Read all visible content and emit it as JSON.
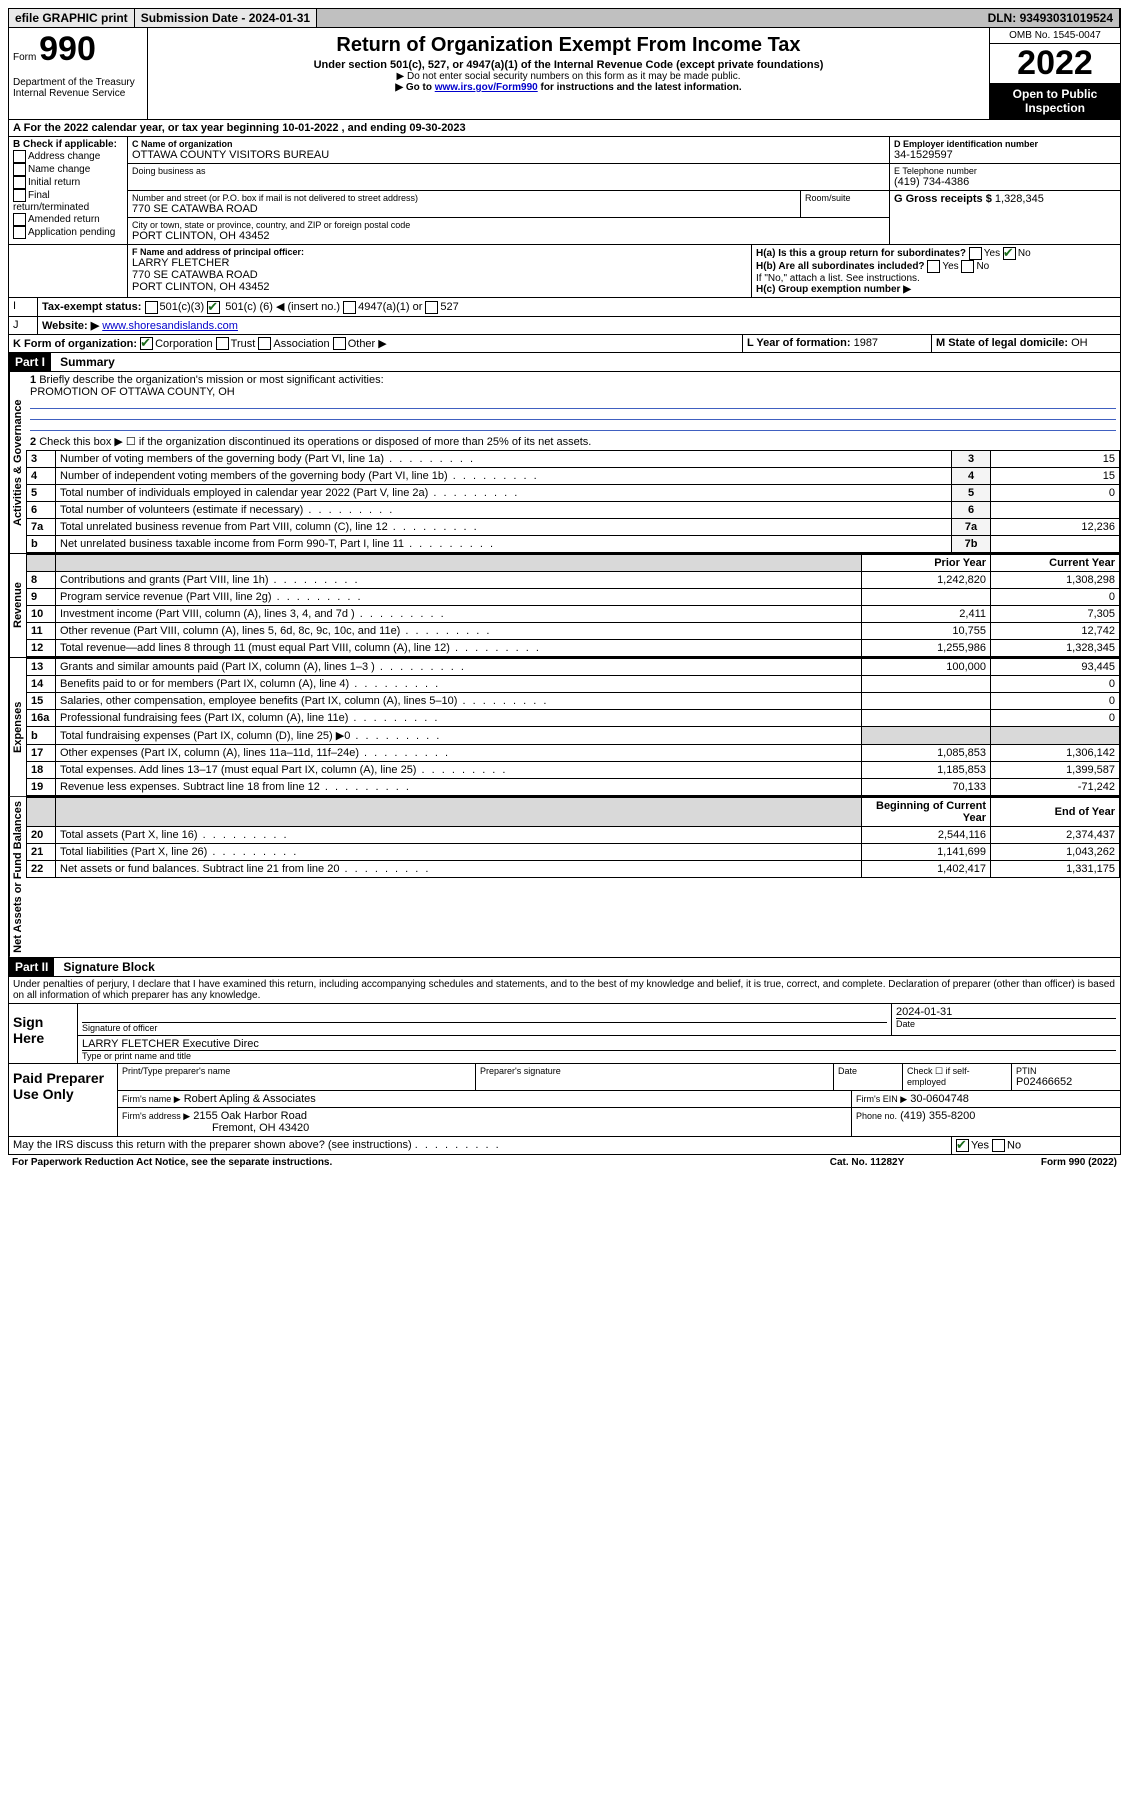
{
  "topbar": {
    "efile": "efile GRAPHIC print",
    "submission_label": "Submission Date - ",
    "submission_date": "2024-01-31",
    "dln_label": "DLN: ",
    "dln": "93493031019524"
  },
  "header": {
    "form": "Form",
    "form_no": "990",
    "dept": "Department of the Treasury\nInternal Revenue Service",
    "title": "Return of Organization Exempt From Income Tax",
    "sub": "Under section 501(c), 527, or 4947(a)(1) of the Internal Revenue Code (except private foundations)",
    "note1": "▶ Do not enter social security numbers on this form as it may be made public.",
    "note2_pre": "▶ Go to ",
    "note2_link": "www.irs.gov/Form990",
    "note2_post": " for instructions and the latest information.",
    "omb": "OMB No. 1545-0047",
    "year": "2022",
    "open": "Open to Public Inspection"
  },
  "A": {
    "text_pre": "For the 2022 calendar year, or tax year beginning ",
    "begin": "10-01-2022",
    "mid": " , and ending ",
    "end": "09-30-2023"
  },
  "B": {
    "label": "B Check if applicable:",
    "addr": "Address change",
    "name": "Name change",
    "init": "Initial return",
    "final": "Final return/terminated",
    "amend": "Amended return",
    "app": "Application pending"
  },
  "C": {
    "name_label": "C Name of organization",
    "name": "OTTAWA COUNTY VISITORS BUREAU",
    "dba_label": "Doing business as",
    "street_label": "Number and street (or P.O. box if mail is not delivered to street address)",
    "room_label": "Room/suite",
    "street": "770 SE CATAWBA ROAD",
    "city_label": "City or town, state or province, country, and ZIP or foreign postal code",
    "city": "PORT CLINTON, OH  43452"
  },
  "D": {
    "label": "D Employer identification number",
    "value": "34-1529597"
  },
  "E": {
    "label": "E Telephone number",
    "value": "(419) 734-4386"
  },
  "G": {
    "label": "G Gross receipts $",
    "value": "1,328,345"
  },
  "F": {
    "label": "F Name and address of principal officer:",
    "name": "LARRY FLETCHER",
    "street": "770 SE CATAWBA ROAD",
    "city": "PORT CLINTON, OH  43452"
  },
  "H": {
    "a": "H(a)  Is this a group return for subordinates?",
    "a_yes": "Yes",
    "a_no": "No",
    "a_checked": "no",
    "b": "H(b)  Are all subordinates included?",
    "b_yes": "Yes",
    "b_no": "No",
    "b_note": "If \"No,\" attach a list. See instructions.",
    "c": "H(c)  Group exemption number ▶"
  },
  "I": {
    "label": "Tax-exempt status:",
    "c3": "501(c)(3)",
    "c_pre": "501(c) (",
    "c_num": "6",
    "c_post": ") ◀ (insert no.)",
    "a1": "4947(a)(1) or",
    "s527": "527"
  },
  "J": {
    "label": "Website: ▶",
    "value": "www.shoresandislands.com"
  },
  "K": {
    "label": "K Form of organization:",
    "corp": "Corporation",
    "trust": "Trust",
    "assoc": "Association",
    "other": "Other ▶"
  },
  "L": {
    "label": "L Year of formation:",
    "value": "1987"
  },
  "M": {
    "label": "M State of legal domicile:",
    "value": "OH"
  },
  "part1": {
    "header": "Part I",
    "title": "Summary",
    "sections": {
      "acts": "Activities & Governance",
      "rev": "Revenue",
      "exp": "Expenses",
      "net": "Net Assets or Fund Balances"
    },
    "q1": "Briefly describe the organization's mission or most significant activities:",
    "q1v": "PROMOTION OF OTTAWA COUNTY, OH",
    "q2": "Check this box ▶ ☐ if the organization discontinued its operations or disposed of more than 25% of its net assets.",
    "lines": {
      "3": {
        "t": "Number of voting members of the governing body (Part VI, line 1a)",
        "n": "3",
        "v": "15"
      },
      "4": {
        "t": "Number of independent voting members of the governing body (Part VI, line 1b)",
        "n": "4",
        "v": "15"
      },
      "5": {
        "t": "Total number of individuals employed in calendar year 2022 (Part V, line 2a)",
        "n": "5",
        "v": "0"
      },
      "6": {
        "t": "Total number of volunteers (estimate if necessary)",
        "n": "6",
        "v": ""
      },
      "7a": {
        "t": "Total unrelated business revenue from Part VIII, column (C), line 12",
        "n": "7a",
        "v": "12,236"
      },
      "7b": {
        "t": "Net unrelated business taxable income from Form 990-T, Part I, line 11",
        "n": "7b",
        "v": ""
      }
    },
    "col_prior": "Prior Year",
    "col_curr": "Current Year",
    "rev": [
      {
        "n": "8",
        "t": "Contributions and grants (Part VIII, line 1h)",
        "p": "1,242,820",
        "c": "1,308,298"
      },
      {
        "n": "9",
        "t": "Program service revenue (Part VIII, line 2g)",
        "p": "",
        "c": "0"
      },
      {
        "n": "10",
        "t": "Investment income (Part VIII, column (A), lines 3, 4, and 7d )",
        "p": "2,411",
        "c": "7,305"
      },
      {
        "n": "11",
        "t": "Other revenue (Part VIII, column (A), lines 5, 6d, 8c, 9c, 10c, and 11e)",
        "p": "10,755",
        "c": "12,742"
      },
      {
        "n": "12",
        "t": "Total revenue—add lines 8 through 11 (must equal Part VIII, column (A), line 12)",
        "p": "1,255,986",
        "c": "1,328,345"
      }
    ],
    "exp": [
      {
        "n": "13",
        "t": "Grants and similar amounts paid (Part IX, column (A), lines 1–3 )",
        "p": "100,000",
        "c": "93,445"
      },
      {
        "n": "14",
        "t": "Benefits paid to or for members (Part IX, column (A), line 4)",
        "p": "",
        "c": "0"
      },
      {
        "n": "15",
        "t": "Salaries, other compensation, employee benefits (Part IX, column (A), lines 5–10)",
        "p": "",
        "c": "0"
      },
      {
        "n": "16a",
        "t": "Professional fundraising fees (Part IX, column (A), line 11e)",
        "p": "",
        "c": "0"
      },
      {
        "n": "b",
        "t": "Total fundraising expenses (Part IX, column (D), line 25) ▶0",
        "p": null,
        "c": null
      },
      {
        "n": "17",
        "t": "Other expenses (Part IX, column (A), lines 11a–11d, 11f–24e)",
        "p": "1,085,853",
        "c": "1,306,142"
      },
      {
        "n": "18",
        "t": "Total expenses. Add lines 13–17 (must equal Part IX, column (A), line 25)",
        "p": "1,185,853",
        "c": "1,399,587"
      },
      {
        "n": "19",
        "t": "Revenue less expenses. Subtract line 18 from line 12",
        "p": "70,133",
        "c": "-71,242"
      }
    ],
    "col_boy": "Beginning of Current Year",
    "col_eoy": "End of Year",
    "net": [
      {
        "n": "20",
        "t": "Total assets (Part X, line 16)",
        "p": "2,544,116",
        "c": "2,374,437"
      },
      {
        "n": "21",
        "t": "Total liabilities (Part X, line 26)",
        "p": "1,141,699",
        "c": "1,043,262"
      },
      {
        "n": "22",
        "t": "Net assets or fund balances. Subtract line 21 from line 20",
        "p": "1,402,417",
        "c": "1,331,175"
      }
    ]
  },
  "part2": {
    "header": "Part II",
    "title": "Signature Block",
    "decl": "Under penalties of perjury, I declare that I have examined this return, including accompanying schedules and statements, and to the best of my knowledge and belief, it is true, correct, and complete. Declaration of preparer (other than officer) is based on all information of which preparer has any knowledge.",
    "sign_here": "Sign Here",
    "sig_label": "Signature of officer",
    "date": "2024-01-31",
    "date_label": "Date",
    "name_type": "LARRY FLETCHER Executive Direc",
    "name_type_label": "Type or print name and title",
    "paid": "Paid Preparer Use Only",
    "pp_name_label": "Print/Type preparer's name",
    "pp_sig_label": "Preparer's signature",
    "pp_date_label": "Date",
    "pp_check": "Check ☐ if self-employed",
    "ptin_label": "PTIN",
    "ptin": "P02466652",
    "firm_name_label": "Firm's name    ▶",
    "firm_name": "Robert Apling & Associates",
    "firm_ein_label": "Firm's EIN ▶",
    "firm_ein": "30-0604748",
    "firm_addr_label": "Firm's address ▶",
    "firm_addr1": "2155 Oak Harbor Road",
    "firm_addr2": "Fremont, OH  43420",
    "phone_label": "Phone no.",
    "phone": "(419) 355-8200",
    "may_discuss": "May the IRS discuss this return with the preparer shown above? (see instructions)",
    "yes": "Yes",
    "no": "No"
  },
  "footer": {
    "pra": "For Paperwork Reduction Act Notice, see the separate instructions.",
    "cat": "Cat. No. 11282Y",
    "form": "Form 990 (2022)"
  }
}
